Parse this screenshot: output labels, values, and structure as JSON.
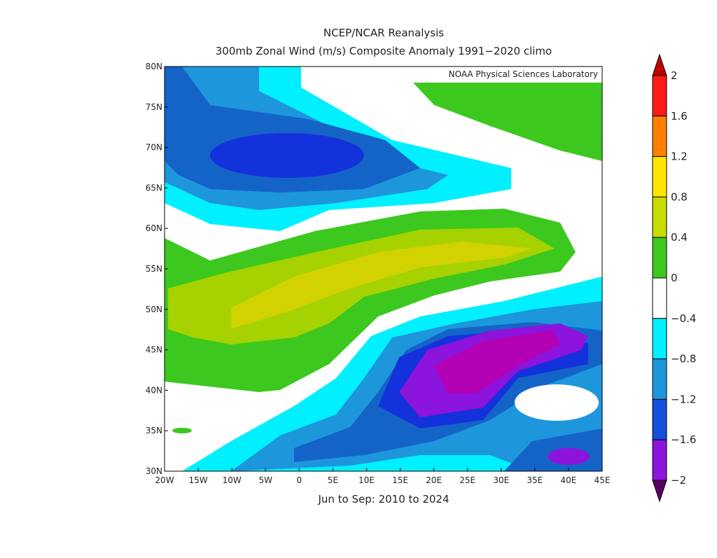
{
  "title": "NCEP/NCAR Reanalysis",
  "subtitle": "300mb Zonal Wind (m/s) Composite Anomaly 1991−2020 climo",
  "credit": "NOAA Physical Sciences Laboratory",
  "map": {
    "xlim": [
      -20,
      45
    ],
    "ylim": [
      30,
      80
    ],
    "xticks": [
      {
        "value": -20,
        "label": "20W"
      },
      {
        "value": -15,
        "label": "15W"
      },
      {
        "value": -10,
        "label": "10W"
      },
      {
        "value": -5,
        "label": "5W"
      },
      0,
      {
        "value": 5,
        "label": "5E"
      },
      {
        "value": 10,
        "label": "10E"
      },
      {
        "value": 15,
        "label": "15E"
      },
      {
        "value": 20,
        "label": "20E"
      },
      {
        "value": 25,
        "label": "25E"
      },
      {
        "value": 30,
        "label": "30E"
      },
      {
        "value": 35,
        "label": "35E"
      },
      {
        "value": 40,
        "label": "40E"
      },
      {
        "value": 45,
        "label": "45E"
      }
    ],
    "yticks": [
      {
        "value": 30,
        "label": "30N"
      },
      {
        "value": 35,
        "label": "35N"
      },
      {
        "value": 40,
        "label": "40N"
      },
      {
        "value": 45,
        "label": "45N"
      },
      {
        "value": 50,
        "label": "50N"
      },
      {
        "value": 55,
        "label": "55N"
      },
      {
        "value": 60,
        "label": "60N"
      },
      {
        "value": 65,
        "label": "65N"
      },
      {
        "value": 70,
        "label": "70N"
      },
      {
        "value": 75,
        "label": "75N"
      },
      {
        "value": 80,
        "label": "80N"
      }
    ],
    "caption": "Jun to Sep: 2010 to 2024"
  },
  "colorbar": {
    "levels": [
      2,
      1.6,
      1.2,
      0.8,
      0.4,
      0,
      {
        "value": -0.4,
        "label": "−0.4"
      },
      {
        "value": -0.8,
        "label": "−0.8"
      },
      {
        "value": -1.2,
        "label": "−1.2"
      },
      {
        "value": -1.6,
        "label": "−1.6"
      },
      {
        "value": -2,
        "label": "−2"
      }
    ],
    "colors": [
      "#c00000",
      "#ff1a1a",
      "#ff8000",
      "#ffe600",
      "#c8dc00",
      "#3cc81e",
      "#ffffff",
      "#00f0ff",
      "#1e96dc",
      "#1450dc",
      "#8c14dc",
      "#b400b4",
      "#5a0064"
    ]
  }
}
